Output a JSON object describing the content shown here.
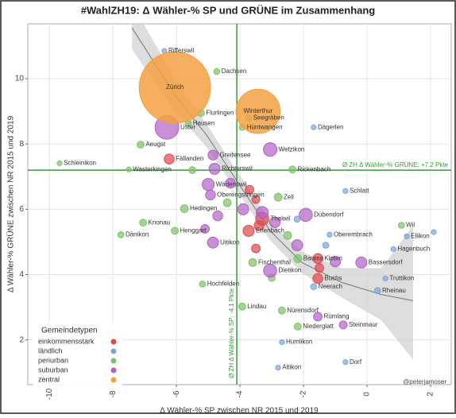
{
  "chart_data": {
    "type": "scatter",
    "title": "#WahlZH19: Δ Wähler-% SP und GRÜNE im Zusammenhang",
    "xlabel": "Δ Wähler-% SP zwischen NR 2015 und 2019",
    "ylabel": "Δ Wähler-% GRÜNE zwischen NR 2015 und 2019",
    "xlim": [
      -10.68,
      2.65
    ],
    "ylim": [
      0.63,
      11.68
    ],
    "xticks": [
      -10,
      -8,
      -6,
      -4,
      -2,
      0,
      2
    ],
    "yticks": [
      2,
      4,
      6,
      8,
      10
    ],
    "grid": true,
    "legend_title": "Gemeindetypen",
    "legend": "lower left",
    "credit": "@peterjamoser",
    "vline": {
      "value": -4.1,
      "label": "Ø ZH Δ Wähler-% SP: -4.1 Pkte",
      "color": "#3a9a3a"
    },
    "hline": {
      "value": 7.2,
      "label": "Ø ZH Δ Wähler-% GRÜNE: +7.2 Pkte",
      "color": "#3a9a3a"
    },
    "trend": {
      "color": "#777777",
      "band_color": "#cfcfcf",
      "x": [
        -7.4,
        -6.05,
        -5.05,
        -4.05,
        -3.05,
        -2.05,
        -0.8,
        0.45,
        1.45
      ],
      "y": [
        11.56,
        9.5,
        8.27,
        6.8,
        5.34,
        4.37,
        3.76,
        3.39,
        3.2
      ],
      "lower": [
        10.9,
        9.0,
        7.9,
        6.5,
        5.05,
        4.05,
        3.3,
        2.6,
        1.4
      ],
      "upper": [
        12.3,
        10.0,
        8.6,
        7.1,
        5.6,
        4.7,
        4.2,
        4.2,
        5.5
      ]
    },
    "series": [
      {
        "name": "einkommensstark",
        "color": "#e0474c",
        "x": [
          -6.23,
          -3.3,
          -3.73,
          -1.55,
          -1.55,
          -3.7,
          -3.5,
          -3.4,
          -1.5,
          -3.5
        ],
        "y": [
          7.54,
          5.71,
          5.34,
          4.49,
          3.88,
          6.6,
          4.8,
          5.5,
          4.2,
          6.3
        ],
        "size": [
          8,
          14,
          10,
          8,
          8,
          6,
          6,
          8,
          6,
          5
        ],
        "labels": [
          "Fällanden",
          "Thalwil",
          "Erlenbach",
          "Kloten",
          "Buchs",
          null,
          null,
          null,
          null,
          null
        ]
      },
      {
        "name": "ländlich",
        "color": "#7aa6da",
        "x": [
          -6.38,
          -1.68,
          -0.68,
          -1.18,
          1.25,
          0.83,
          0.58,
          0.33,
          -1.68,
          -2.68,
          -2.8,
          -0.68,
          2.1,
          -2.2,
          -1.3
        ],
        "y": [
          10.85,
          8.51,
          6.56,
          5.22,
          5.17,
          4.78,
          3.88,
          3.51,
          3.63,
          1.93,
          1.15,
          1.32,
          5.3,
          5.7,
          4.9
        ],
        "size": [
          2,
          2,
          2,
          2,
          2,
          2,
          2,
          3,
          3,
          2,
          2,
          2,
          2,
          3,
          3
        ],
        "labels": [
          "Rifferswil",
          "Dägerlen",
          "Schlatt",
          "Oberembrach",
          "Ellikon",
          "Hagenbuch",
          "Truttikon",
          "Rheinau",
          "Neerach",
          "Humlikon",
          "Altikon",
          "Dorf",
          null,
          null,
          null
        ]
      },
      {
        "name": "periurban",
        "color": "#7ec16a",
        "x": [
          -4.73,
          -5.23,
          -5.63,
          -7.13,
          -9.68,
          -7.5,
          -3.73,
          -3.93,
          -2.35,
          -2.8,
          -5.75,
          -7.05,
          -7.75,
          -6.05,
          1.08,
          -3.6,
          -2.18,
          -5.18,
          -3.93,
          -2.68,
          -2.18,
          -5.5,
          -4.4,
          -2.5,
          -3.0
        ],
        "y": [
          10.22,
          8.95,
          8.63,
          7.98,
          7.41,
          7.22,
          8.8,
          8.51,
          7.22,
          6.37,
          6.02,
          5.59,
          5.22,
          5.34,
          5.51,
          4.37,
          4.49,
          3.71,
          3.02,
          2.9,
          2.41,
          7.2,
          6.2,
          5.2,
          3.9
        ],
        "size": [
          3,
          4,
          3,
          4,
          2,
          2,
          3,
          3,
          4,
          5,
          5,
          4,
          3,
          4,
          3,
          5,
          5,
          3,
          4,
          4,
          4,
          4,
          5,
          5,
          4
        ],
        "labels": [
          "Dachsen",
          "Flurlingen",
          "Hausen",
          "Aeugst",
          "Schleinikon",
          "Wasterkingen",
          "Seegräben",
          "Hüntwangen",
          "Rickenbach",
          "Zell",
          "Hedingen",
          "Knonau",
          "Dänikon",
          "Henggart",
          "Wil",
          "Fischenthal",
          "Bauma",
          "Hochfelden",
          "Lindau",
          "Nürensdorf",
          "Niederglatt",
          null,
          null,
          null,
          null
        ]
      },
      {
        "name": "suburban",
        "color": "#b061c5",
        "x": [
          -6.3,
          -3.05,
          -4.85,
          -4.8,
          -5.0,
          -4.93,
          -1.93,
          -4.85,
          -0.18,
          -3.05,
          -1.55,
          -0.75,
          -4.3,
          -3.9,
          -3.3,
          -2.9,
          -2.2,
          -4.7,
          -5.1,
          -1.0
        ],
        "y": [
          8.51,
          7.83,
          7.66,
          7.24,
          6.76,
          6.44,
          5.83,
          4.98,
          4.37,
          4.12,
          2.71,
          2.46,
          6.8,
          6.0,
          5.9,
          5.6,
          4.9,
          5.8,
          5.4,
          4.4
        ],
        "size": [
          46,
          15,
          8,
          10,
          12,
          8,
          14,
          10,
          10,
          14,
          6,
          5,
          8,
          10,
          12,
          9,
          10,
          8,
          6,
          9
        ],
        "labels": [
          "Uster",
          "Wetzikon",
          "Greifensee",
          "Richterswil",
          "Wädenswil",
          "Oberengstringen",
          "Dübendorf",
          "Uitikon",
          "Bassersdorf",
          "Dietikon",
          "Rümlang",
          "Steinmaur",
          null,
          null,
          null,
          null,
          null,
          null,
          null,
          null
        ]
      },
      {
        "name": "zentral",
        "color": "#f5a142",
        "x": [
          -6.05,
          -3.43
        ],
        "y": [
          9.73,
          9.0
        ],
        "size": [
          418,
          160
        ],
        "labels": [
          "Zürich",
          "Winterthur"
        ]
      }
    ]
  }
}
